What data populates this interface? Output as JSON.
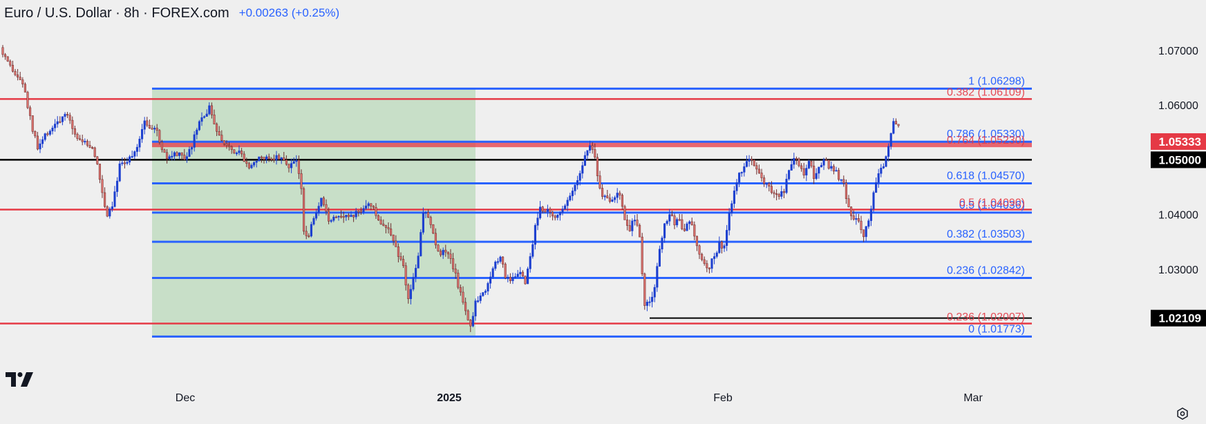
{
  "header": {
    "title": "Euro / U.S. Dollar · 8h · FOREX.com",
    "change": "+0.00263 (+0.25%)"
  },
  "icons": {
    "logo": "tradingview-logo",
    "settings": "settings-gear-icon"
  },
  "colors": {
    "background": "#efefef",
    "up_candle": "#1c3fcf",
    "down_candle": "#d9716d",
    "fib_line": "#2962ff",
    "resistance_line": "#e53945",
    "black_line": "#000000",
    "shaded_box": "#c8dfc8"
  },
  "chart_data": {
    "type": "candlestick",
    "instrument": "EUR/USD",
    "timeframe": "8h",
    "y_axis": {
      "range": [
        1.0155,
        1.0735
      ],
      "ticks": [
        "1.07000",
        "1.06000",
        "1.04000",
        "1.03000"
      ]
    },
    "x_axis": {
      "ticks": [
        "Dec",
        "2025",
        "Feb",
        "Mar"
      ]
    },
    "price_badges": [
      {
        "label": "1.05333",
        "value": 1.05333,
        "color": "#e53945"
      },
      {
        "label": "1.05000",
        "value": 1.05,
        "color": "#000000"
      },
      {
        "label": "1.02109",
        "value": 1.02109,
        "color": "#000000"
      }
    ],
    "fib_levels": [
      {
        "label": "1 (1.06298)",
        "value": 1.06298
      },
      {
        "label": "0.786 (1.05330)",
        "value": 1.0533
      },
      {
        "label": "0.618 (1.04570)",
        "value": 1.0457
      },
      {
        "label": "0.5 (1.04036)",
        "value": 1.04036
      },
      {
        "label": "0.382 (1.03503)",
        "value": 1.03503
      },
      {
        "label": "0.236 (1.02842)",
        "value": 1.02842
      },
      {
        "label": "0 (1.01773)",
        "value": 1.01773
      }
    ],
    "red_fib_levels": [
      {
        "label": "0.382 (1.06109)",
        "value": 1.06109
      },
      {
        "label": "0.764 (1.05230)",
        "value": 1.0523
      },
      {
        "label": "0.5 (1.04090)",
        "value": 1.0409
      },
      {
        "label": "0.236 (1.02007)",
        "value": 1.02007
      }
    ],
    "horizontal_lines": [
      {
        "value": 1.0611,
        "color": "#e53945"
      },
      {
        "value": 1.0409,
        "color": "#e53945"
      },
      {
        "value": 1.0201,
        "color": "#e53945"
      },
      {
        "value": 1.05,
        "color": "#000000"
      }
    ],
    "zones": [
      {
        "from": 1.0523,
        "to": 1.0534,
        "color": "#e53945"
      }
    ],
    "waypoints": [
      [
        0,
        1.069
      ],
      [
        4,
        1.066
      ],
      [
        8,
        1.064
      ],
      [
        12,
        1.0555
      ],
      [
        14,
        1.052
      ],
      [
        18,
        1.055
      ],
      [
        22,
        1.057
      ],
      [
        26,
        1.058
      ],
      [
        30,
        1.054
      ],
      [
        32,
        1.0535
      ],
      [
        36,
        1.052
      ],
      [
        38,
        1.049
      ],
      [
        40,
        1.044
      ],
      [
        42,
        1.04
      ],
      [
        44,
        1.042
      ],
      [
        47,
        1.049
      ],
      [
        50,
        1.05
      ],
      [
        53,
        1.051
      ],
      [
        55,
        1.054
      ],
      [
        57,
        1.0575
      ],
      [
        59,
        1.056
      ],
      [
        62,
        1.055
      ],
      [
        64,
        1.052
      ],
      [
        66,
        1.05
      ],
      [
        70,
        1.051
      ],
      [
        74,
        1.05
      ],
      [
        77,
        1.054
      ],
      [
        79,
        1.057
      ],
      [
        81,
        1.058
      ],
      [
        83,
        1.0595
      ],
      [
        85,
        1.056
      ],
      [
        88,
        1.054
      ],
      [
        92,
        1.052
      ],
      [
        95,
        1.0515
      ],
      [
        99,
        1.049
      ],
      [
        103,
        1.05
      ],
      [
        107,
        1.0505
      ],
      [
        111,
        1.0505
      ],
      [
        115,
        1.049
      ],
      [
        118,
        1.05
      ],
      [
        120,
        1.0445
      ],
      [
        121,
        1.0365
      ],
      [
        123,
        1.0365
      ],
      [
        126,
        1.04
      ],
      [
        128,
        1.0425
      ],
      [
        131,
        1.039
      ],
      [
        134,
        1.04
      ],
      [
        137,
        1.04
      ],
      [
        140,
        1.0395
      ],
      [
        143,
        1.0405
      ],
      [
        146,
        1.042
      ],
      [
        149,
        1.041
      ],
      [
        151,
        1.0385
      ],
      [
        153,
        1.0385
      ],
      [
        156,
        1.036
      ],
      [
        158,
        1.034
      ],
      [
        161,
        1.0305
      ],
      [
        163,
        1.0245
      ],
      [
        165,
        1.0285
      ],
      [
        167,
        1.0325
      ],
      [
        169,
        1.0405
      ],
      [
        171,
        1.04
      ],
      [
        173,
        1.037
      ],
      [
        175,
        1.033
      ],
      [
        178,
        1.033
      ],
      [
        180,
        1.0315
      ],
      [
        182,
        1.029
      ],
      [
        184,
        1.0255
      ],
      [
        186,
        1.0225
      ],
      [
        188,
        1.02
      ],
      [
        190,
        1.024
      ],
      [
        192,
        1.0255
      ],
      [
        194,
        1.026
      ],
      [
        196,
        1.0285
      ],
      [
        198,
        1.0315
      ],
      [
        200,
        1.0325
      ],
      [
        202,
        1.0285
      ],
      [
        204,
        1.028
      ],
      [
        206,
        1.029
      ],
      [
        208,
        1.0295
      ],
      [
        210,
        1.0275
      ],
      [
        212,
        1.032
      ],
      [
        214,
        1.038
      ],
      [
        216,
        1.041
      ],
      [
        218,
        1.0405
      ],
      [
        220,
        1.041
      ],
      [
        222,
        1.039
      ],
      [
        225,
        1.041
      ],
      [
        228,
        1.044
      ],
      [
        230,
        1.045
      ],
      [
        232,
        1.048
      ],
      [
        234,
        1.0505
      ],
      [
        236,
        1.053
      ],
      [
        238,
        1.0505
      ],
      [
        240,
        1.0445
      ],
      [
        242,
        1.043
      ],
      [
        244,
        1.0425
      ],
      [
        246,
        1.043
      ],
      [
        248,
        1.044
      ],
      [
        250,
        1.039
      ],
      [
        252,
        1.037
      ],
      [
        254,
        1.0395
      ],
      [
        256,
        1.0355
      ],
      [
        258,
        1.0235
      ],
      [
        260,
        1.0235
      ],
      [
        262,
        1.027
      ],
      [
        264,
        1.0335
      ],
      [
        266,
        1.038
      ],
      [
        268,
        1.04
      ],
      [
        270,
        1.0385
      ],
      [
        272,
        1.039
      ],
      [
        274,
        1.0365
      ],
      [
        276,
        1.039
      ],
      [
        278,
        1.0365
      ],
      [
        280,
        1.0325
      ],
      [
        282,
        1.031
      ],
      [
        284,
        1.0305
      ],
      [
        286,
        1.0325
      ],
      [
        288,
        1.0345
      ],
      [
        290,
        1.034
      ],
      [
        292,
        1.04
      ],
      [
        294,
        1.044
      ],
      [
        296,
        1.047
      ],
      [
        298,
        1.049
      ],
      [
        300,
        1.0505
      ],
      [
        302,
        1.0495
      ],
      [
        304,
        1.048
      ],
      [
        306,
        1.046
      ],
      [
        308,
        1.045
      ],
      [
        310,
        1.044
      ],
      [
        312,
        1.0435
      ],
      [
        314,
        1.0445
      ],
      [
        316,
        1.048
      ],
      [
        318,
        1.0505
      ],
      [
        320,
        1.049
      ],
      [
        322,
        1.047
      ],
      [
        324,
        1.05
      ],
      [
        326,
        1.047
      ],
      [
        328,
        1.0485
      ],
      [
        330,
        1.0505
      ],
      [
        332,
        1.049
      ],
      [
        334,
        1.0485
      ],
      [
        336,
        1.0465
      ],
      [
        338,
        1.0455
      ],
      [
        340,
        1.041
      ],
      [
        342,
        1.0395
      ],
      [
        344,
        1.0385
      ],
      [
        346,
        1.0365
      ],
      [
        348,
        1.0385
      ],
      [
        350,
        1.0445
      ],
      [
        352,
        1.0475
      ],
      [
        354,
        1.049
      ],
      [
        356,
        1.052
      ],
      [
        358,
        1.0565
      ]
    ],
    "shaded_range": {
      "from_index": 60,
      "to_index": 190,
      "y_from": 1.0177,
      "y_to": 1.063
    },
    "fib_extent": {
      "from_index": 60,
      "to_index": 360
    }
  }
}
